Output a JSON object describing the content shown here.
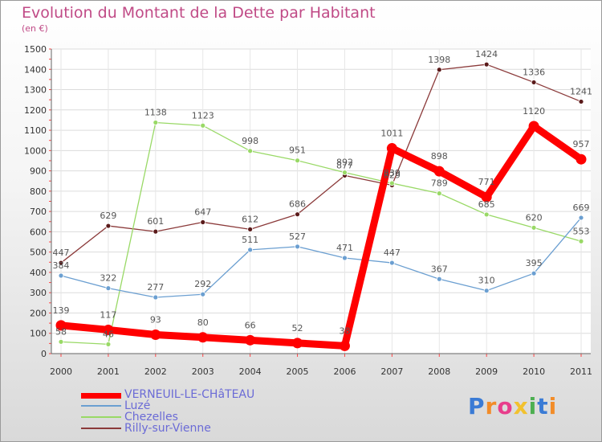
{
  "chart_data": {
    "type": "line",
    "title": "Evolution du Montant de la Dette par Habitant",
    "subtitle": "(en €)",
    "x": [
      "2000",
      "2001",
      "2002",
      "2003",
      "2004",
      "2005",
      "2006",
      "2007",
      "2008",
      "2009",
      "2010",
      "2011"
    ],
    "ylim": [
      0,
      1500
    ],
    "yticks": [
      0,
      100,
      200,
      300,
      400,
      500,
      600,
      700,
      800,
      900,
      1000,
      1100,
      1200,
      1300,
      1400,
      1500
    ],
    "grid": true,
    "legend_position": "bottom-left",
    "series": [
      {
        "name": "VERNEUIL-LE-CHâTEAU",
        "color": "#ff0000",
        "values": [
          139,
          117,
          93,
          80,
          66,
          52,
          38,
          1011,
          898,
          771,
          1120,
          957
        ]
      },
      {
        "name": "Luzé",
        "color": "#6b9fd1",
        "values": [
          384,
          322,
          277,
          292,
          511,
          527,
          471,
          447,
          367,
          310,
          395,
          669
        ]
      },
      {
        "name": "Chezelles",
        "color": "#99d966",
        "values": [
          58,
          46,
          1138,
          1123,
          998,
          951,
          892,
          839,
          789,
          685,
          620,
          553
        ]
      },
      {
        "name": "Rilly-sur-Vienne",
        "color": "#8b3a3a",
        "values": [
          447,
          629,
          601,
          647,
          612,
          686,
          877,
          829,
          1398,
          1424,
          1336,
          1241
        ]
      }
    ]
  },
  "logo": {
    "text": "Proxiti"
  }
}
